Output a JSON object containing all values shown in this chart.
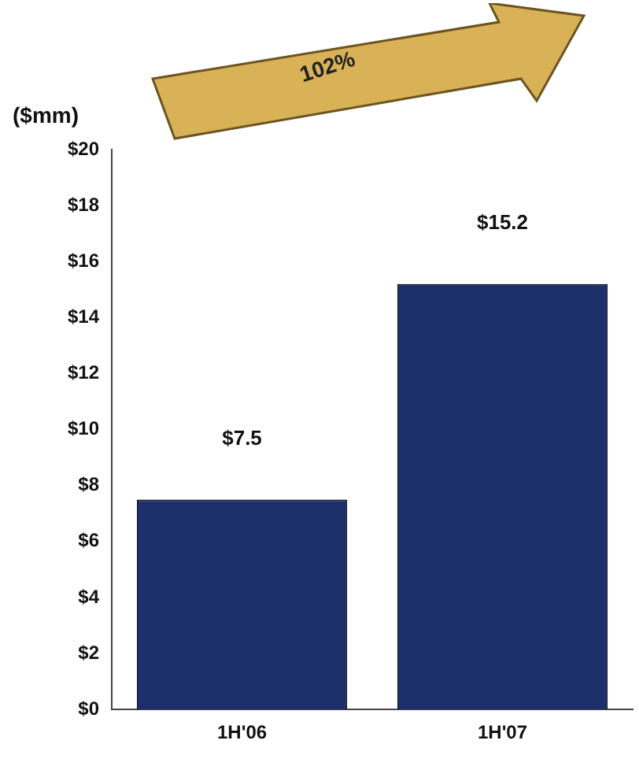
{
  "chart_data": {
    "type": "bar",
    "ylabel": "($mm)",
    "annotations": [
      "102%"
    ],
    "categories": [
      "1H'06",
      "1H'07"
    ],
    "values": [
      7.5,
      15.2
    ],
    "color": "#1c2f6b",
    "value_labels": [
      "$7.5",
      "$15.2"
    ],
    "ylim": [
      0,
      20
    ],
    "yticks": [
      {
        "value": 0,
        "label": "$0"
      },
      {
        "value": 2,
        "label": "$2"
      },
      {
        "value": 4,
        "label": "$4"
      },
      {
        "value": 6,
        "label": "$6"
      },
      {
        "value": 8,
        "label": "$8"
      },
      {
        "value": 10,
        "label": "$10"
      },
      {
        "value": 12,
        "label": "$12"
      },
      {
        "value": 14,
        "label": "$14"
      },
      {
        "value": 16,
        "label": "$16"
      },
      {
        "value": 18,
        "label": "$18"
      },
      {
        "value": 20,
        "label": "$20"
      }
    ],
    "grid": false,
    "legend": false
  }
}
